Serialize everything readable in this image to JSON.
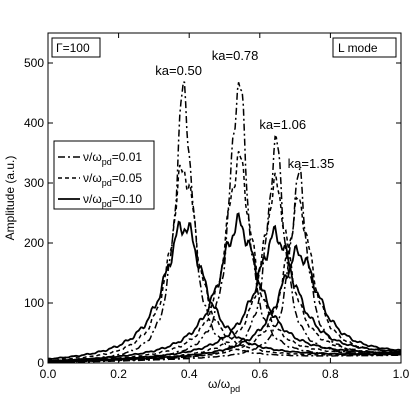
{
  "chart_data": {
    "type": "line",
    "xlabel": "ω/ω",
    "xlabel_sub": "pd",
    "ylabel": "Amplitude (a.u.)",
    "xlim": [
      0.0,
      1.0
    ],
    "ylim": [
      0,
      550
    ],
    "xticks": [
      0.0,
      0.2,
      0.4,
      0.6,
      0.8,
      1.0
    ],
    "xtick_labels": [
      "0.0",
      "0.2",
      "0.4",
      "0.6",
      "0.8",
      "1.0"
    ],
    "yticks": [
      0,
      100,
      200,
      300,
      400,
      500
    ],
    "ytick_labels": [
      "0",
      "100",
      "200",
      "300",
      "400",
      "500"
    ],
    "grid": false,
    "box_label_left": "Γ=100",
    "box_label_right": "L mode",
    "legend": {
      "placement": "center-left",
      "entries": [
        {
          "prefix": "ν/ω",
          "sub": "pd",
          "suffix": "=0.01",
          "style": "dashdot"
        },
        {
          "prefix": "ν/ω",
          "sub": "pd",
          "suffix": "=0.05",
          "style": "dashed"
        },
        {
          "prefix": "ν/ω",
          "sub": "pd",
          "suffix": "=0.10",
          "style": "solid"
        }
      ]
    },
    "annotations": [
      {
        "text": "ka=0.50",
        "x": 0.37,
        "y": 480
      },
      {
        "text": "ka=0.78",
        "x": 0.53,
        "y": 505
      },
      {
        "text": "ka=1.06",
        "x": 0.665,
        "y": 390
      },
      {
        "text": "ka=1.35",
        "x": 0.745,
        "y": 325
      }
    ],
    "peaks": [
      {
        "ka": 0.5,
        "center": 0.385,
        "amplitudes": {
          "0.01": 445,
          "0.05": 320,
          "0.10": 225
        }
      },
      {
        "ka": 0.78,
        "center": 0.54,
        "amplitudes": {
          "0.01": 465,
          "0.05": 330,
          "0.10": 225
        }
      },
      {
        "ka": 1.06,
        "center": 0.645,
        "amplitudes": {
          "0.01": 355,
          "0.05": 285,
          "0.10": 205
        }
      },
      {
        "ka": 1.35,
        "center": 0.71,
        "amplitudes": {
          "0.01": 300,
          "0.05": 255,
          "0.10": 175
        }
      }
    ]
  }
}
